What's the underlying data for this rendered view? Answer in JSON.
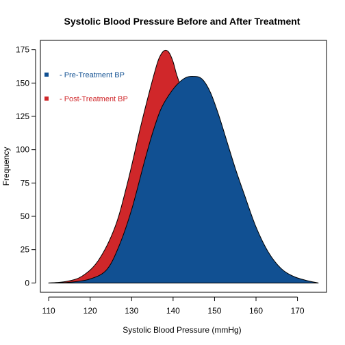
{
  "chart_data": {
    "type": "area",
    "title": "Systolic Blood Pressure Before and After Treatment",
    "xlabel": "Systolic Blood Pressure (mmHg)",
    "ylabel": "Frequency",
    "xlim": [
      108,
      177
    ],
    "ylim": [
      -7,
      182
    ],
    "xticks": [
      110,
      120,
      130,
      140,
      150,
      160,
      170
    ],
    "yticks": [
      0,
      25,
      50,
      75,
      100,
      125,
      150,
      175
    ],
    "grid": false,
    "legend_position": "top-left",
    "series": [
      {
        "name": "- Post-Treatment BP",
        "color": "#D0272A",
        "points": [
          [
            110,
            0
          ],
          [
            114,
            1
          ],
          [
            118,
            5
          ],
          [
            122,
            17
          ],
          [
            126,
            42
          ],
          [
            129,
            75
          ],
          [
            132,
            115
          ],
          [
            134,
            140
          ],
          [
            136,
            163
          ],
          [
            137,
            171
          ],
          [
            138,
            174.5
          ],
          [
            139,
            173
          ],
          [
            140,
            166
          ],
          [
            141,
            155
          ],
          [
            143,
            138
          ],
          [
            145,
            125
          ],
          [
            146,
            112
          ],
          [
            148,
            90
          ],
          [
            150,
            65
          ],
          [
            152,
            45
          ],
          [
            154,
            30
          ],
          [
            156,
            19
          ],
          [
            158,
            11
          ],
          [
            160,
            6
          ],
          [
            165,
            2
          ],
          [
            170,
            0.5
          ],
          [
            175,
            0
          ]
        ]
      },
      {
        "name": "- Pre-Treatment BP",
        "color": "#115092",
        "points": [
          [
            110,
            0
          ],
          [
            115,
            0.5
          ],
          [
            120,
            3
          ],
          [
            124,
            10
          ],
          [
            127,
            28
          ],
          [
            130,
            55
          ],
          [
            133,
            90
          ],
          [
            135,
            112
          ],
          [
            137,
            130
          ],
          [
            139,
            141
          ],
          [
            141,
            149
          ],
          [
            143,
            154
          ],
          [
            145,
            155
          ],
          [
            147,
            153
          ],
          [
            149,
            143
          ],
          [
            151,
            126
          ],
          [
            153,
            106
          ],
          [
            155,
            86
          ],
          [
            157,
            68
          ],
          [
            160,
            42
          ],
          [
            163,
            23
          ],
          [
            166,
            11
          ],
          [
            169,
            5
          ],
          [
            172,
            2
          ],
          [
            175,
            0
          ]
        ]
      }
    ]
  }
}
